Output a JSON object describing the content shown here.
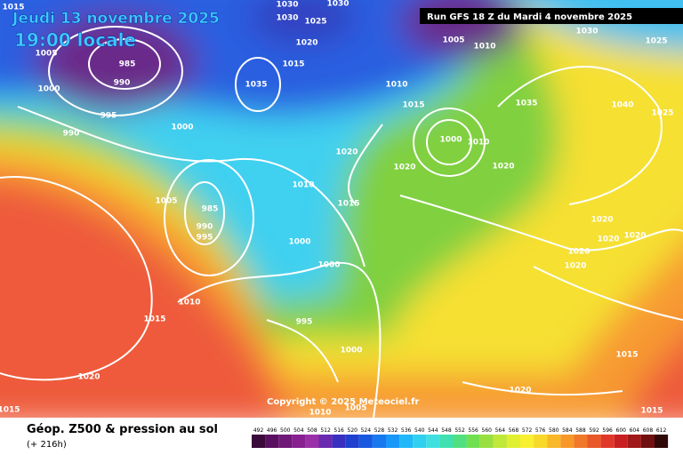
{
  "header": {
    "date": "Jeudi 13 novembre 2025",
    "time": "19:00 locale",
    "run": "Run GFS 18 Z du Mardi 4 novembre 2025"
  },
  "copyright": "Copyright © 2025 Meteociel.fr",
  "footer": {
    "title": "Géop. Z500 & pression au sol",
    "lead": "(+ 216h)"
  },
  "scale": {
    "labels": [
      492,
      496,
      500,
      504,
      508,
      512,
      516,
      520,
      524,
      528,
      532,
      536,
      540,
      544,
      548,
      552,
      556,
      560,
      564,
      568,
      572,
      576,
      580,
      584,
      588,
      592,
      596,
      600,
      604,
      608,
      612
    ]
  },
  "isobar_labels": [
    1015,
    1030,
    1030,
    1030,
    1025,
    1020,
    1005,
    985,
    990,
    1000,
    995,
    990,
    1000,
    1035,
    1015,
    1010,
    1015,
    1005,
    1010,
    1030,
    1025,
    1035,
    1040,
    1025,
    1000,
    1010,
    1020,
    1020,
    1020,
    1010,
    1005,
    985,
    990,
    995,
    1015,
    1020,
    1020,
    1020,
    1020,
    1000,
    1000,
    1020,
    1010,
    1015,
    995,
    1000,
    1015,
    1020,
    1020,
    1015,
    1010,
    1005,
    1015
  ]
}
